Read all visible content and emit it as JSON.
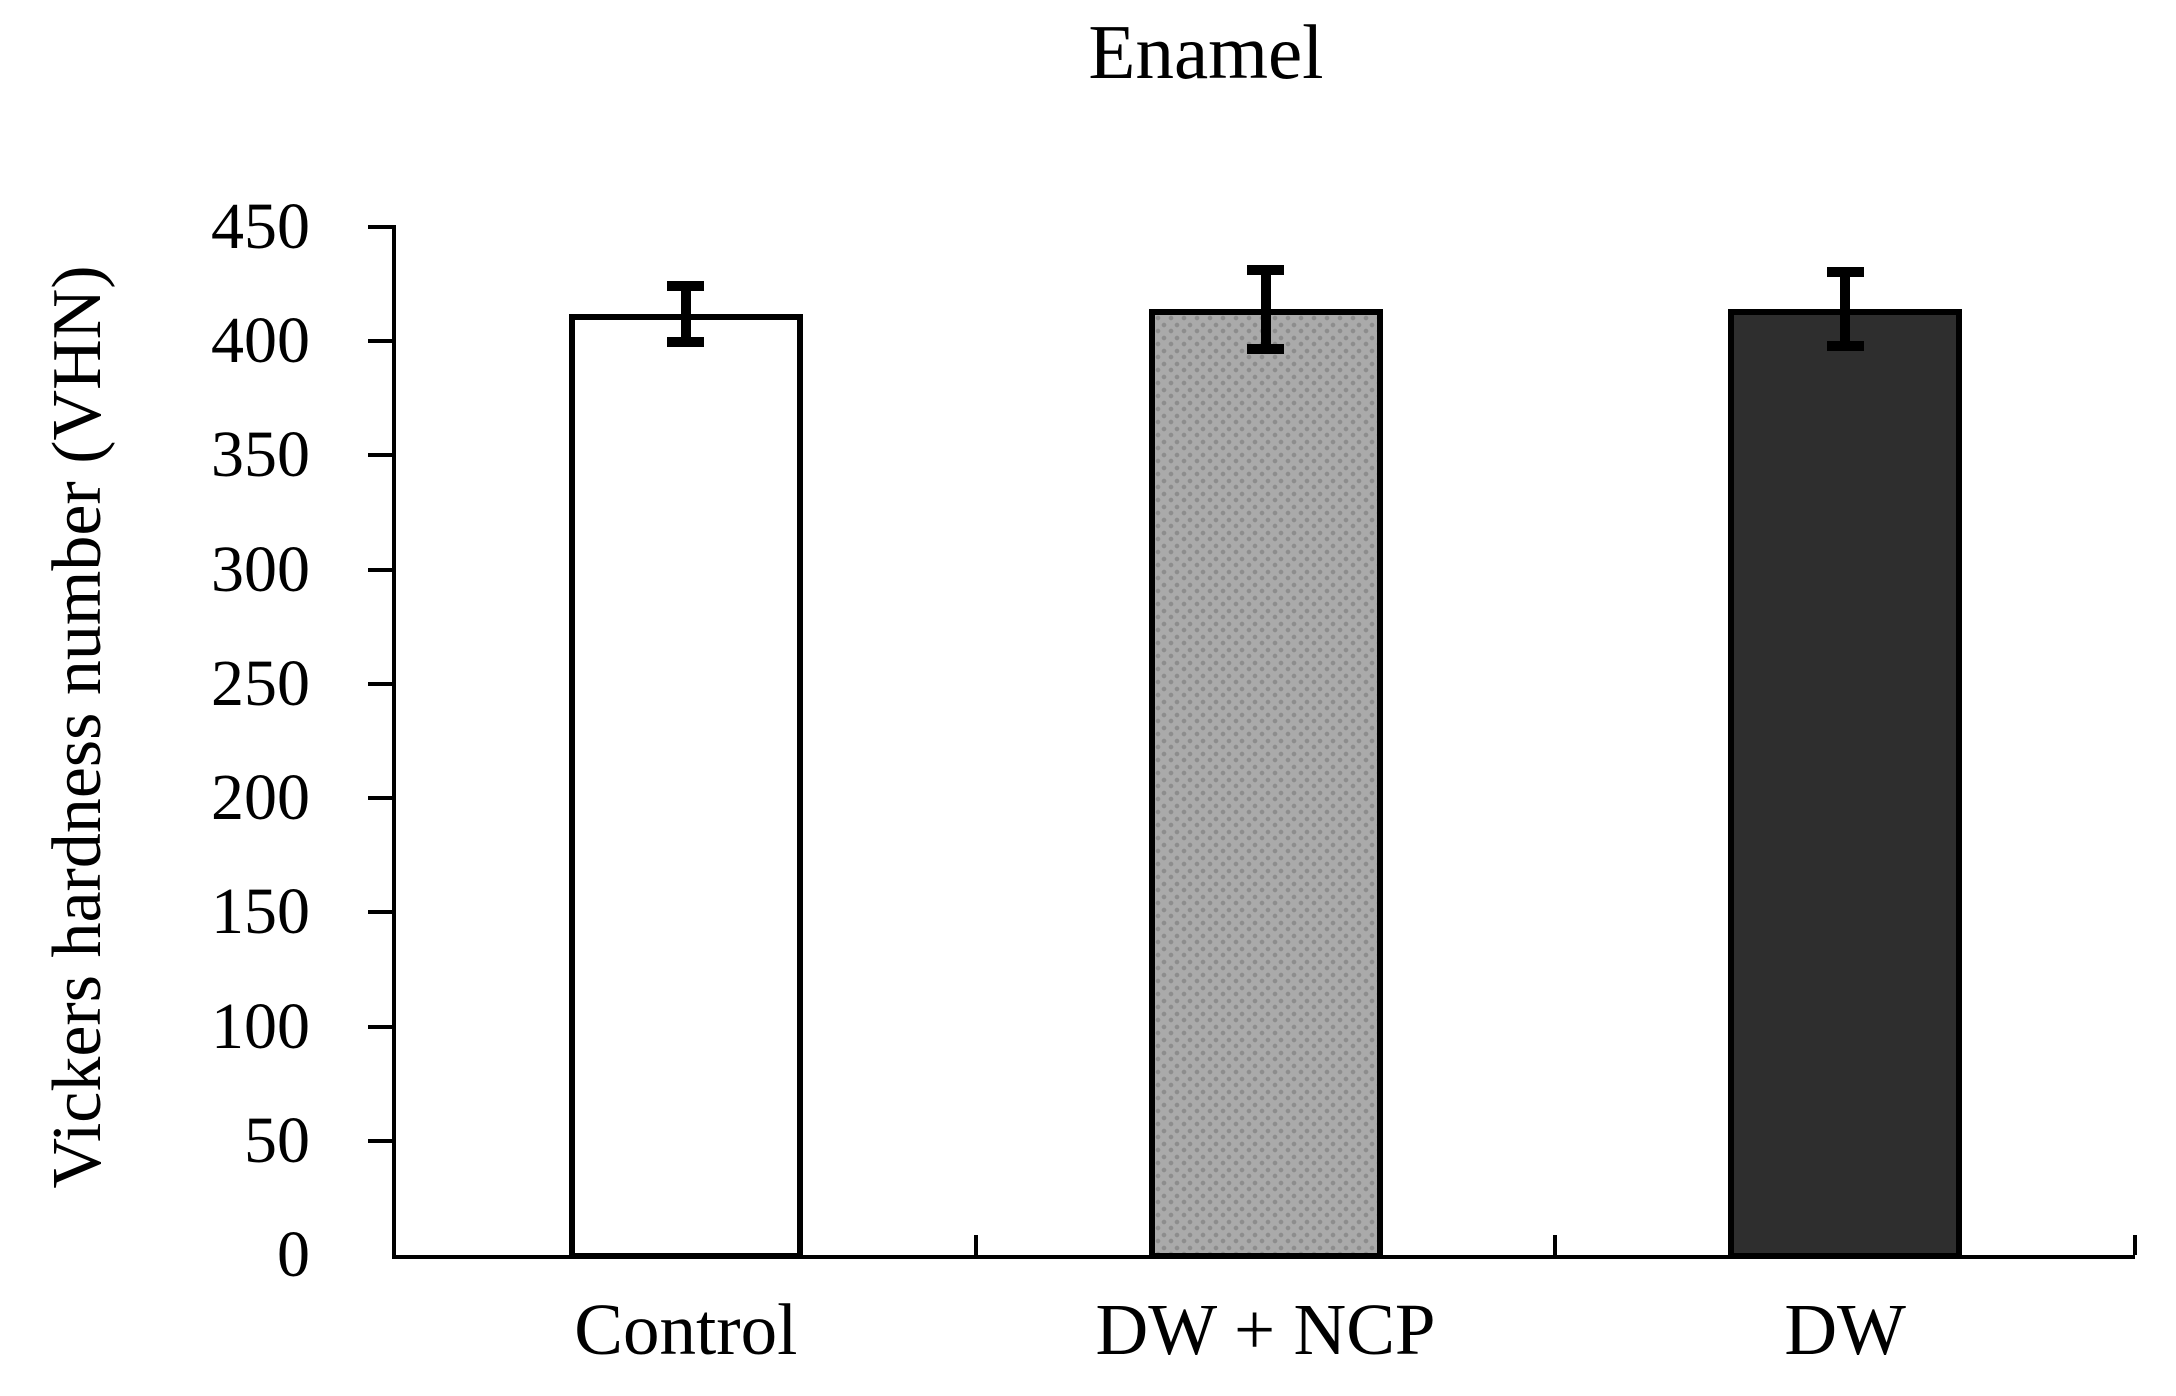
{
  "title": "Enamel",
  "chart_data": {
    "type": "bar",
    "title": "Enamel",
    "categories": [
      "Control",
      "DW + NCP",
      "DW"
    ],
    "values": [
      412,
      414,
      414
    ],
    "errors": [
      14,
      19,
      18
    ],
    "xlabel": "",
    "ylabel": "Vickers hardness number (VHN)",
    "ylim": [
      0,
      450
    ],
    "ytick_interval": 50,
    "ytick_labels": [
      "0",
      "50",
      "100",
      "150",
      "200",
      "250",
      "300",
      "350",
      "400",
      "450"
    ],
    "grid": false,
    "legend": false,
    "bar_fills": [
      "#ffffff",
      "#aaaaaa",
      "#2e2e2e"
    ],
    "bar_patterns": [
      "none",
      "stipple",
      "none"
    ],
    "stipple_dot_color": "#8d8d8d",
    "bar_border_color": "#000000",
    "axis_color": "#000000",
    "error_bar_color": "#000000",
    "text_color": "#000000",
    "background_color": "#ffffff"
  }
}
